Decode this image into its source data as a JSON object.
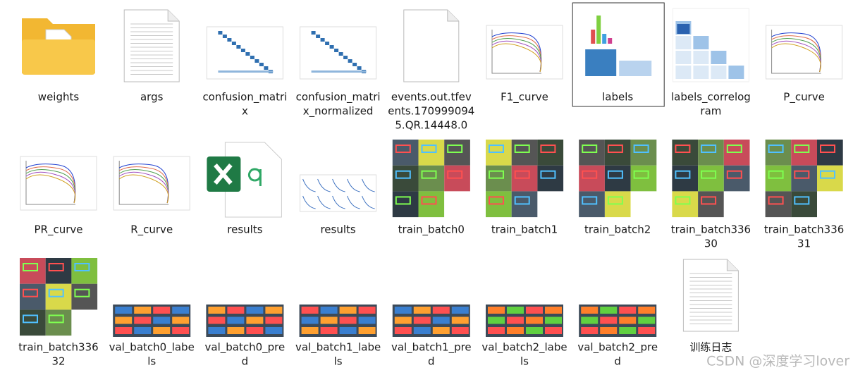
{
  "items": [
    {
      "label": [
        "weights"
      ]
    },
    {
      "label": [
        "args"
      ]
    },
    {
      "label": [
        "confusion_matri",
        "x"
      ]
    },
    {
      "label": [
        "confusion_matri",
        "x_normalized"
      ]
    },
    {
      "label": [
        "events.out.tfev",
        "ents.170999094",
        "5.QR.14448.0"
      ]
    },
    {
      "label": [
        "F1_curve"
      ]
    },
    {
      "label": [
        "labels"
      ]
    },
    {
      "label": [
        "labels_correlog",
        "ram"
      ]
    },
    {
      "label": [
        "P_curve"
      ]
    },
    {
      "label": [
        "PR_curve"
      ]
    },
    {
      "label": [
        "R_curve"
      ]
    },
    {
      "label": [
        "results"
      ]
    },
    {
      "label": [
        "results"
      ]
    },
    {
      "label": [
        "train_batch0"
      ]
    },
    {
      "label": [
        "train_batch1"
      ]
    },
    {
      "label": [
        "train_batch2"
      ]
    },
    {
      "label": [
        "train_batch336",
        "30"
      ]
    },
    {
      "label": [
        "train_batch336",
        "31"
      ]
    },
    {
      "label": [
        "train_batch336",
        "32"
      ]
    },
    {
      "label": [
        "val_batch0_labe",
        "ls"
      ]
    },
    {
      "label": [
        "val_batch0_pre",
        "d"
      ]
    },
    {
      "label": [
        "val_batch1_labe",
        "ls"
      ]
    },
    {
      "label": [
        "val_batch1_pre",
        "d"
      ]
    },
    {
      "label": [
        "val_batch2_labe",
        "ls"
      ]
    },
    {
      "label": [
        "val_batch2_pre",
        "d"
      ]
    },
    {
      "label": [
        "训练日志"
      ]
    }
  ],
  "watermark": "CSDN @深度学习lover"
}
